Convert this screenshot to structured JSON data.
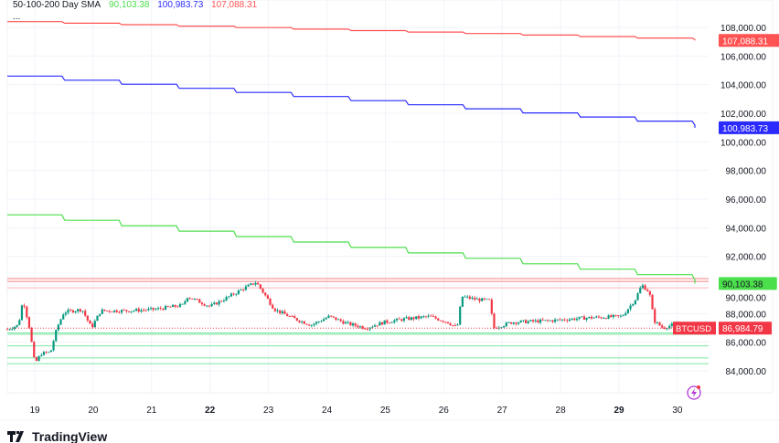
{
  "legend": {
    "title": "50-100-200 Day SMA",
    "sma50": "90,103.38",
    "sma100": "100,983.73",
    "sma200": "107,088.31",
    "more": "..."
  },
  "branding": {
    "name": "TradingView"
  },
  "colors": {
    "up": "#089981",
    "down": "#f23645",
    "sma50": "#4cdf4c",
    "sma100": "#2b2bff",
    "sma200": "#ff5252",
    "grid": "#f0f3fa"
  },
  "chart_data": {
    "type": "candlestick",
    "symbol": "BTCUSD",
    "last_price": 86984.79,
    "last_price_label": "86,984.79",
    "ylim": [
      83400,
      108800
    ],
    "y_ticks": [
      84000,
      86000,
      88000,
      90000,
      92000,
      94000,
      96000,
      98000,
      100000,
      102000,
      104000,
      106000,
      108000
    ],
    "y_tick_labels": [
      "84,000.00",
      "86,000.00",
      "88,000.00",
      "90,000.00",
      "92,000.00",
      "94,000.00",
      "96,000.00",
      "98,000.00",
      "100,000.00",
      "102,000.00",
      "104,000.00",
      "106,000.00",
      "108,000.00"
    ],
    "xlim": [
      18.5,
      31.1
    ],
    "x_ticks": [
      19,
      20,
      21,
      22,
      23,
      24,
      25,
      26,
      27,
      28,
      29,
      30
    ],
    "x_tick_labels": [
      "19",
      "20",
      "21",
      "22",
      "23",
      "24",
      "25",
      "26",
      "27",
      "28",
      "29",
      "30"
    ],
    "x_bold": [
      "22",
      "29"
    ],
    "price_path": [
      [
        18.53,
        86900
      ],
      [
        18.72,
        87200
      ],
      [
        18.8,
        89000
      ],
      [
        18.91,
        87000
      ],
      [
        19.0,
        84500
      ],
      [
        19.11,
        85200
      ],
      [
        19.27,
        85300
      ],
      [
        19.38,
        87000
      ],
      [
        19.5,
        88100
      ],
      [
        19.81,
        88300
      ],
      [
        19.97,
        87000
      ],
      [
        20.13,
        88200
      ],
      [
        20.6,
        88200
      ],
      [
        21.07,
        88300
      ],
      [
        21.54,
        88600
      ],
      [
        21.61,
        89200
      ],
      [
        22.0,
        88500
      ],
      [
        22.24,
        89000
      ],
      [
        22.55,
        89700
      ],
      [
        22.79,
        90200
      ],
      [
        22.94,
        89300
      ],
      [
        23.1,
        88300
      ],
      [
        23.41,
        87700
      ],
      [
        23.73,
        87200
      ],
      [
        24.04,
        87800
      ],
      [
        24.35,
        87300
      ],
      [
        24.67,
        87000
      ],
      [
        24.98,
        87400
      ],
      [
        25.29,
        87600
      ],
      [
        25.76,
        87800
      ],
      [
        26.07,
        87400
      ],
      [
        26.23,
        87000
      ],
      [
        26.31,
        89200
      ],
      [
        26.54,
        89000
      ],
      [
        26.78,
        88900
      ],
      [
        26.86,
        87000
      ],
      [
        27.17,
        87400
      ],
      [
        27.8,
        87500
      ],
      [
        28.43,
        87700
      ],
      [
        29.05,
        87800
      ],
      [
        29.28,
        89000
      ],
      [
        29.39,
        90000
      ],
      [
        29.52,
        89500
      ],
      [
        29.6,
        87500
      ],
      [
        29.75,
        87000
      ],
      [
        29.99,
        87300
      ],
      [
        30.14,
        86985
      ]
    ],
    "sma": [
      {
        "name": "SMA 200",
        "label": "107,088.31",
        "color": "#ff5252",
        "start": 108400,
        "end": 107088.31
      },
      {
        "name": "SMA 100",
        "label": "100,983.73",
        "color": "#2b2bff",
        "start": 104600,
        "end": 100983.73
      },
      {
        "name": "SMA 50",
        "label": "90,103.38",
        "color": "#4cdf4c",
        "start": 94900,
        "end": 90103.38
      }
    ],
    "resistance_levels": [
      90450,
      90250,
      89800
    ],
    "support_levels": [
      86650,
      86550,
      85750,
      84900,
      84500
    ]
  }
}
